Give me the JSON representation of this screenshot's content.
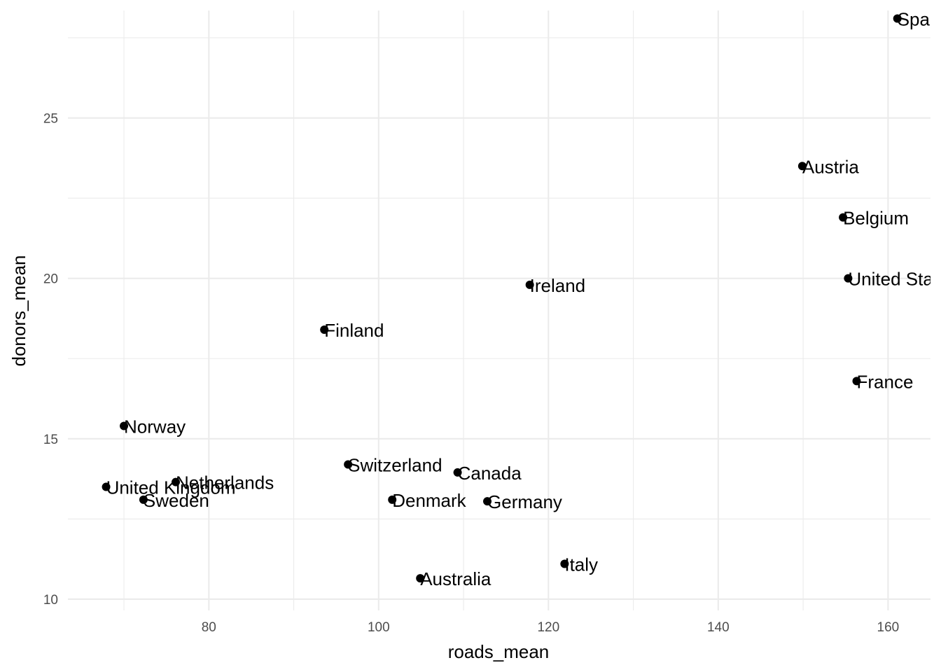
{
  "chart_data": {
    "type": "scatter",
    "xlabel": "roads_mean",
    "ylabel": "donors_mean",
    "xlim": [
      63.4,
      165
    ],
    "ylim": [
      9.65,
      28.35
    ],
    "x_ticks": [
      80,
      100,
      120,
      140,
      160
    ],
    "x_minor_ticks": [
      70,
      90,
      110,
      130,
      150
    ],
    "y_ticks": [
      10,
      15,
      20,
      25
    ],
    "y_minor_ticks": [
      12.5,
      17.5,
      22.5,
      27.5
    ],
    "grid": true,
    "points": [
      {
        "label": "Spain",
        "x": 161.1,
        "y": 28.1
      },
      {
        "label": "Austria",
        "x": 149.9,
        "y": 23.5
      },
      {
        "label": "Belgium",
        "x": 154.7,
        "y": 21.9
      },
      {
        "label": "United States",
        "x": 155.3,
        "y": 20.0
      },
      {
        "label": "Ireland",
        "x": 117.8,
        "y": 19.8
      },
      {
        "label": "Finland",
        "x": 93.6,
        "y": 18.4
      },
      {
        "label": "France",
        "x": 156.3,
        "y": 16.8
      },
      {
        "label": "Norway",
        "x": 70.0,
        "y": 15.4
      },
      {
        "label": "Switzerland",
        "x": 96.4,
        "y": 14.2
      },
      {
        "label": "Canada",
        "x": 109.3,
        "y": 13.95
      },
      {
        "label": "Netherlands",
        "x": 76.1,
        "y": 13.65
      },
      {
        "label": "United Kingdom",
        "x": 67.9,
        "y": 13.5
      },
      {
        "label": "Sweden",
        "x": 72.3,
        "y": 13.1
      },
      {
        "label": "Denmark",
        "x": 101.6,
        "y": 13.1
      },
      {
        "label": "Germany",
        "x": 112.8,
        "y": 13.05
      },
      {
        "label": "Italy",
        "x": 121.9,
        "y": 11.1
      },
      {
        "label": "Australia",
        "x": 104.9,
        "y": 10.65
      }
    ]
  }
}
